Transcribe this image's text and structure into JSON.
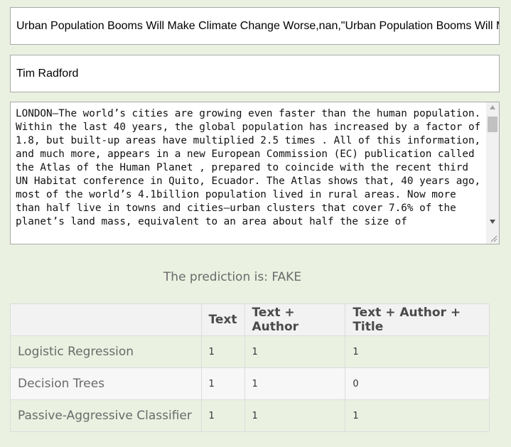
{
  "title_field": {
    "value": "Urban Population Booms Will Make Climate Change Worse,nan,\"Urban Population Booms Will Make Climate Change Worse"
  },
  "author_field": {
    "value": "Tim Radford"
  },
  "text_area": {
    "value": "LONDON—The world’s cities are growing even faster than the human population. Within the last 40 years, the global population has increased by a factor of 1.8, but built-up areas have multiplied 2.5 times . All of this information, and much more, appears in a new European Commission (EC) publication called the Atlas of the Human Planet , prepared to coincide with the recent third UN Habitat conference in Quito, Ecuador. The Atlas shows that, 40 years ago, most of the world’s 4.1billion population lived in rural areas. Now more than half live in towns and cities—urban clusters that cover 7.6% of the planet’s land mass, equivalent to an area about half the size of"
  },
  "prediction": {
    "text": "The prediction is: FAKE"
  },
  "results_table": {
    "headers": [
      "",
      "Text",
      "Text + Author",
      "Text + Author + Title"
    ],
    "rows": [
      {
        "model": "Logistic Regression",
        "text": "1",
        "text_author": "1",
        "text_author_title": "1"
      },
      {
        "model": "Decision Trees",
        "text": "1",
        "text_author": "1",
        "text_author_title": "0"
      },
      {
        "model": "Passive-Aggressive Classifier",
        "text": "1",
        "text_author": "1",
        "text_author_title": "1"
      }
    ]
  },
  "colors": {
    "page_background": "#eaf1e1",
    "header_background": "#f2f2f2",
    "border": "#dcdcdc"
  },
  "icons": {
    "scroll_up": "scroll-up-arrow-icon",
    "scroll_down": "scroll-down-arrow-icon",
    "resize": "resize-grip-icon"
  }
}
